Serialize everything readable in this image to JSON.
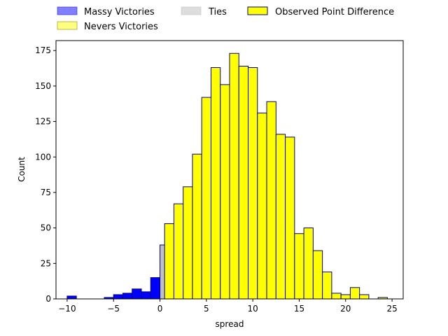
{
  "chart_data": {
    "type": "bar",
    "xlabel": "spread",
    "ylabel": "Count",
    "xlim": [
      -11.2,
      26.2
    ],
    "ylim": [
      0,
      182
    ],
    "x_ticks": [
      -10,
      -5,
      0,
      5,
      10,
      15,
      20,
      25
    ],
    "y_ticks": [
      0,
      25,
      50,
      75,
      100,
      125,
      150,
      175
    ],
    "bin_width": 1,
    "legend": {
      "placement": "top, above plot",
      "entries": [
        {
          "label": "Massy Victories",
          "color": "#0000ff"
        },
        {
          "label": "Nevers Victories",
          "color": "#ffff00"
        },
        {
          "label": "Ties",
          "color": "#bbbbbb"
        },
        {
          "label": "Observed Point Difference",
          "color": "#ffff00"
        }
      ]
    },
    "series": [
      {
        "name": "Massy Victories",
        "color": "#0000ff",
        "bins": [
          {
            "x": -10,
            "count": 2
          },
          {
            "x": -8,
            "count": 0
          },
          {
            "x": -7,
            "count": 0
          },
          {
            "x": -6,
            "count": 1
          },
          {
            "x": -5,
            "count": 3
          },
          {
            "x": -4,
            "count": 4
          },
          {
            "x": -3,
            "count": 7
          },
          {
            "x": -2,
            "count": 5
          },
          {
            "x": -1,
            "count": 15
          }
        ]
      },
      {
        "name": "Ties",
        "color": "#c0c0c0",
        "bins": [
          {
            "x": 0,
            "count": 38
          }
        ]
      },
      {
        "name": "Nevers Victories",
        "color": "#ffff00",
        "bins": [
          {
            "x": 0.5,
            "count": 53
          },
          {
            "x": 1.5,
            "count": 67
          },
          {
            "x": 2.5,
            "count": 79
          },
          {
            "x": 3.5,
            "count": 102
          },
          {
            "x": 4.5,
            "count": 142
          },
          {
            "x": 5.5,
            "count": 163
          },
          {
            "x": 6.5,
            "count": 151
          },
          {
            "x": 7.5,
            "count": 173
          },
          {
            "x": 8.5,
            "count": 164
          },
          {
            "x": 9.5,
            "count": 163
          },
          {
            "x": 10.5,
            "count": 131
          },
          {
            "x": 11.5,
            "count": 139
          },
          {
            "x": 12.5,
            "count": 116
          },
          {
            "x": 13.5,
            "count": 114
          },
          {
            "x": 14.5,
            "count": 46
          },
          {
            "x": 15.5,
            "count": 50
          },
          {
            "x": 16.5,
            "count": 34
          },
          {
            "x": 17.5,
            "count": 19
          },
          {
            "x": 18.5,
            "count": 4
          },
          {
            "x": 19.5,
            "count": 3
          },
          {
            "x": 20.5,
            "count": 8
          },
          {
            "x": 21.5,
            "count": 3
          },
          {
            "x": 22.5,
            "count": 0
          },
          {
            "x": 23.5,
            "count": 1
          }
        ]
      }
    ]
  }
}
